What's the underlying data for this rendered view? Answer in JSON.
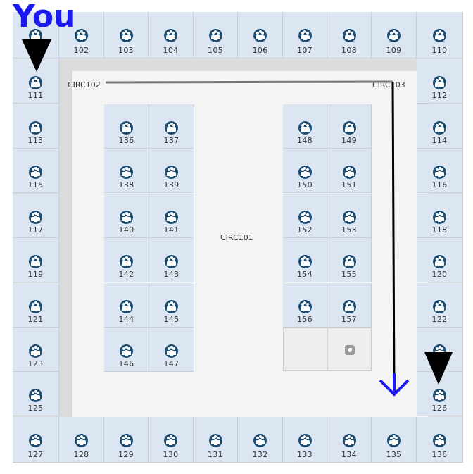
{
  "you_label": "You",
  "circulation_labels": [
    "CIRC102",
    "CIRC103",
    "CIRC101"
  ],
  "rooms": {
    "top": [
      "",
      "102",
      "103",
      "104",
      "105",
      "106",
      "107",
      "108",
      "109",
      "110"
    ],
    "left": [
      "111",
      "113",
      "115",
      "117",
      "119",
      "121",
      "123",
      "125"
    ],
    "right": [
      "112",
      "114",
      "116",
      "118",
      "120",
      "122",
      "",
      "126"
    ],
    "bottom": [
      "127",
      "128",
      "129",
      "130",
      "131",
      "132",
      "133",
      "134",
      "135",
      "136"
    ],
    "block_left": [
      "136",
      "137",
      "138",
      "139",
      "140",
      "141",
      "142",
      "143",
      "144",
      "145",
      "146",
      "147"
    ],
    "block_right": [
      "148",
      "149",
      "150",
      "151",
      "152",
      "153",
      "154",
      "155",
      "156",
      "157"
    ]
  },
  "room_icon": "people-group-icon",
  "colors": {
    "room": "#dce6f2",
    "icon": "#1f4e73",
    "you": "#1a1af0",
    "route": "#000000",
    "arrow": "#1a1af0"
  },
  "route": {
    "from_room": "111",
    "to_room": "126"
  }
}
